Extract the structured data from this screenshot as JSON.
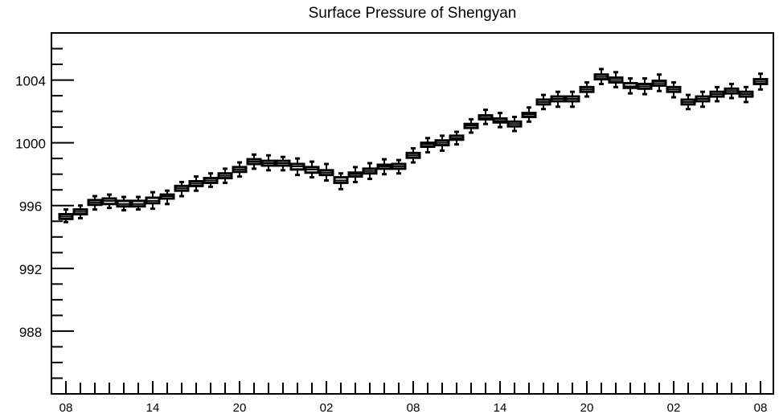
{
  "chart_data": {
    "type": "box",
    "title": "Surface Pressure of Shengyan",
    "xlabel": "",
    "ylabel": "",
    "ylim": [
      984.0,
      1007.0
    ],
    "y_major_ticks": [
      988,
      992,
      996,
      1000,
      1004
    ],
    "y_minor_step": 1,
    "x_tick_labels": [
      "08",
      "14",
      "20",
      "02",
      "08",
      "14",
      "20",
      "02",
      "08"
    ],
    "x_minor_tick_every": 1,
    "grid": false,
    "box_color": "#000000",
    "boxes": [
      {
        "i": 0,
        "median": 995.3,
        "q1": 995.15,
        "q3": 995.45,
        "wlo": 994.95,
        "whi": 995.75
      },
      {
        "i": 1,
        "median": 995.6,
        "q1": 995.45,
        "q3": 995.75,
        "wlo": 995.2,
        "whi": 996.0
      },
      {
        "i": 2,
        "median": 996.2,
        "q1": 996.05,
        "q3": 996.35,
        "wlo": 995.75,
        "whi": 996.6
      },
      {
        "i": 3,
        "median": 996.3,
        "q1": 996.1,
        "q3": 996.45,
        "wlo": 995.85,
        "whi": 996.7
      },
      {
        "i": 4,
        "median": 996.1,
        "q1": 995.95,
        "q3": 996.3,
        "wlo": 995.7,
        "whi": 996.55
      },
      {
        "i": 5,
        "median": 996.1,
        "q1": 995.95,
        "q3": 996.3,
        "wlo": 995.75,
        "whi": 996.55
      },
      {
        "i": 6,
        "median": 996.3,
        "q1": 996.15,
        "q3": 996.5,
        "wlo": 995.8,
        "whi": 996.85
      },
      {
        "i": 7,
        "median": 996.6,
        "q1": 996.45,
        "q3": 996.7,
        "wlo": 996.1,
        "whi": 996.95
      },
      {
        "i": 8,
        "median": 997.1,
        "q1": 996.95,
        "q3": 997.25,
        "wlo": 996.6,
        "whi": 997.5
      },
      {
        "i": 9,
        "median": 997.4,
        "q1": 997.25,
        "q3": 997.55,
        "wlo": 996.95,
        "whi": 997.85
      },
      {
        "i": 10,
        "median": 997.6,
        "q1": 997.45,
        "q3": 997.75,
        "wlo": 997.2,
        "whi": 998.05
      },
      {
        "i": 11,
        "median": 997.9,
        "q1": 997.75,
        "q3": 998.05,
        "wlo": 997.45,
        "whi": 998.35
      },
      {
        "i": 12,
        "median": 998.3,
        "q1": 998.15,
        "q3": 998.45,
        "wlo": 997.85,
        "whi": 998.75
      },
      {
        "i": 13,
        "median": 998.8,
        "q1": 998.65,
        "q3": 998.95,
        "wlo": 998.35,
        "whi": 999.25
      },
      {
        "i": 14,
        "median": 998.7,
        "q1": 998.55,
        "q3": 998.85,
        "wlo": 998.25,
        "whi": 999.2
      },
      {
        "i": 15,
        "median": 998.7,
        "q1": 998.55,
        "q3": 998.85,
        "wlo": 998.25,
        "whi": 999.1
      },
      {
        "i": 16,
        "median": 998.5,
        "q1": 998.3,
        "q3": 998.65,
        "wlo": 997.95,
        "whi": 999.0
      },
      {
        "i": 17,
        "median": 998.3,
        "q1": 998.1,
        "q3": 998.45,
        "wlo": 997.8,
        "whi": 998.8
      },
      {
        "i": 18,
        "median": 998.1,
        "q1": 997.95,
        "q3": 998.25,
        "wlo": 997.6,
        "whi": 998.65
      },
      {
        "i": 19,
        "median": 997.6,
        "q1": 997.45,
        "q3": 997.8,
        "wlo": 997.05,
        "whi": 998.05
      },
      {
        "i": 20,
        "median": 998.0,
        "q1": 997.85,
        "q3": 998.1,
        "wlo": 997.5,
        "whi": 998.45
      },
      {
        "i": 21,
        "median": 998.2,
        "q1": 998.05,
        "q3": 998.35,
        "wlo": 997.7,
        "whi": 998.7
      },
      {
        "i": 22,
        "median": 998.5,
        "q1": 998.35,
        "q3": 998.6,
        "wlo": 998.0,
        "whi": 998.95
      },
      {
        "i": 23,
        "median": 998.5,
        "q1": 998.35,
        "q3": 998.65,
        "wlo": 998.05,
        "whi": 998.9
      },
      {
        "i": 24,
        "median": 999.2,
        "q1": 999.05,
        "q3": 999.35,
        "wlo": 998.75,
        "whi": 999.65
      },
      {
        "i": 25,
        "median": 999.9,
        "q1": 999.75,
        "q3": 1000.0,
        "wlo": 999.4,
        "whi": 1000.3
      },
      {
        "i": 26,
        "median": 1000.0,
        "q1": 999.85,
        "q3": 1000.15,
        "wlo": 999.5,
        "whi": 1000.45
      },
      {
        "i": 27,
        "median": 1000.3,
        "q1": 1000.2,
        "q3": 1000.45,
        "wlo": 999.9,
        "whi": 1000.7
      },
      {
        "i": 28,
        "median": 1001.1,
        "q1": 1000.95,
        "q3": 1001.2,
        "wlo": 1000.65,
        "whi": 1001.5
      },
      {
        "i": 29,
        "median": 1001.6,
        "q1": 1001.5,
        "q3": 1001.75,
        "wlo": 1001.2,
        "whi": 1002.1
      },
      {
        "i": 30,
        "median": 1001.4,
        "q1": 1001.3,
        "q3": 1001.55,
        "wlo": 1001.0,
        "whi": 1001.9
      },
      {
        "i": 31,
        "median": 1001.2,
        "q1": 1001.05,
        "q3": 1001.35,
        "wlo": 1000.75,
        "whi": 1001.65
      },
      {
        "i": 32,
        "median": 1001.8,
        "q1": 1001.65,
        "q3": 1001.9,
        "wlo": 1001.35,
        "whi": 1002.25
      },
      {
        "i": 33,
        "median": 1002.6,
        "q1": 1002.45,
        "q3": 1002.75,
        "wlo": 1002.15,
        "whi": 1003.05
      },
      {
        "i": 34,
        "median": 1002.8,
        "q1": 1002.65,
        "q3": 1002.95,
        "wlo": 1002.3,
        "whi": 1003.25
      },
      {
        "i": 35,
        "median": 1002.8,
        "q1": 1002.65,
        "q3": 1002.95,
        "wlo": 1002.3,
        "whi": 1003.25
      },
      {
        "i": 36,
        "median": 1003.4,
        "q1": 1003.25,
        "q3": 1003.55,
        "wlo": 1002.95,
        "whi": 1003.85
      },
      {
        "i": 37,
        "median": 1004.2,
        "q1": 1004.05,
        "q3": 1004.35,
        "wlo": 1003.75,
        "whi": 1004.7
      },
      {
        "i": 38,
        "median": 1004.0,
        "q1": 1003.85,
        "q3": 1004.15,
        "wlo": 1003.55,
        "whi": 1004.5
      },
      {
        "i": 39,
        "median": 1003.6,
        "q1": 1003.5,
        "q3": 1003.8,
        "wlo": 1003.15,
        "whi": 1004.1
      },
      {
        "i": 40,
        "median": 1003.6,
        "q1": 1003.45,
        "q3": 1003.75,
        "wlo": 1003.1,
        "whi": 1004.1
      },
      {
        "i": 41,
        "median": 1003.8,
        "q1": 1003.65,
        "q3": 1003.95,
        "wlo": 1003.3,
        "whi": 1004.35
      },
      {
        "i": 42,
        "median": 1003.4,
        "q1": 1003.25,
        "q3": 1003.55,
        "wlo": 1002.9,
        "whi": 1003.85
      },
      {
        "i": 43,
        "median": 1002.6,
        "q1": 1002.45,
        "q3": 1002.75,
        "wlo": 1002.15,
        "whi": 1003.05
      },
      {
        "i": 44,
        "median": 1002.8,
        "q1": 1002.65,
        "q3": 1002.95,
        "wlo": 1002.3,
        "whi": 1003.25
      },
      {
        "i": 45,
        "median": 1003.1,
        "q1": 1002.95,
        "q3": 1003.25,
        "wlo": 1002.65,
        "whi": 1003.55
      },
      {
        "i": 46,
        "median": 1003.3,
        "q1": 1003.15,
        "q3": 1003.45,
        "wlo": 1002.85,
        "whi": 1003.75
      },
      {
        "i": 47,
        "median": 1003.1,
        "q1": 1002.95,
        "q3": 1003.25,
        "wlo": 1002.6,
        "whi": 1003.55
      },
      {
        "i": 48,
        "median": 1003.9,
        "q1": 1003.75,
        "q3": 1004.05,
        "wlo": 1003.4,
        "whi": 1004.4
      }
    ]
  }
}
